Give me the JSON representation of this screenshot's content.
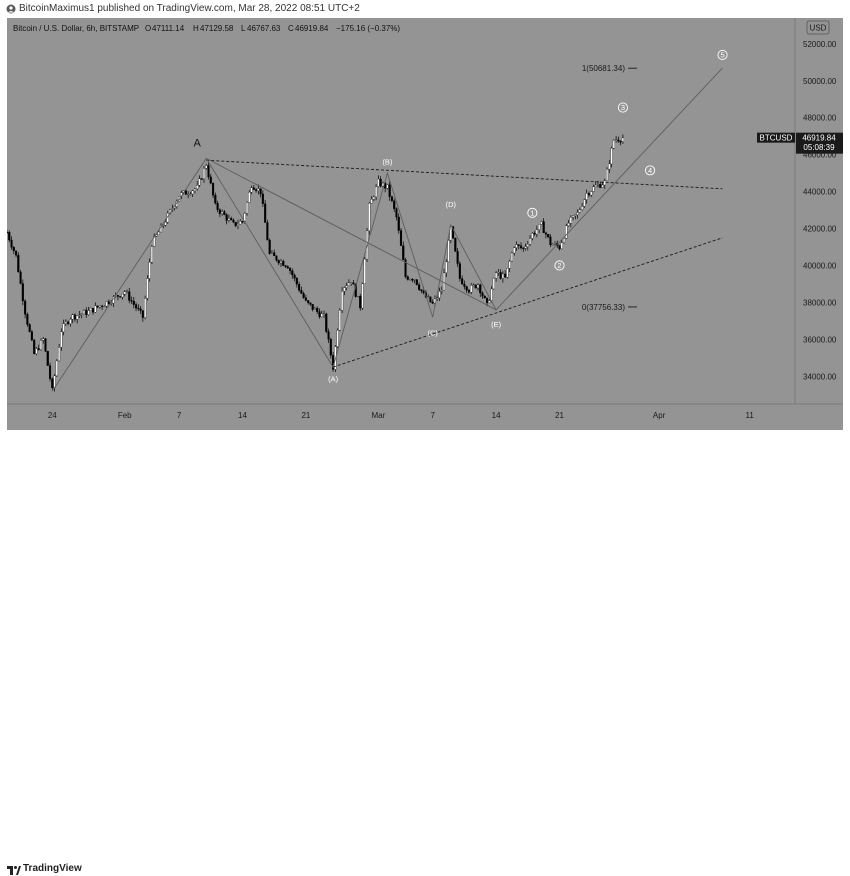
{
  "header": {
    "publisher": "BitcoinMaximus1 published on TradingView.com, Mar 28, 2022 08:51 UTC+2"
  },
  "footer": {
    "brand": "TradingView"
  },
  "chart_data": {
    "type": "candlestick",
    "legend": {
      "symbol": "Bitcoin / U.S. Dollar, 6h, BITSTAMP",
      "open_label": "O",
      "open": "47111.14",
      "high_label": "H",
      "high": "47129.58",
      "low_label": "L",
      "low": "46767.63",
      "close_label": "C",
      "close": "46919.84",
      "change": "−175.16 (−0.37%)"
    },
    "currency_label": "USD",
    "price_tag": {
      "symbol": "BTCUSD",
      "price": "46919.84",
      "price_value": 46919.84,
      "countdown": "05:08:39"
    },
    "y_axis": {
      "range": [
        32500,
        53400
      ],
      "ticks": [
        {
          "v": 52000,
          "label": "52000.00"
        },
        {
          "v": 50000,
          "label": "50000.00"
        },
        {
          "v": 48000,
          "label": "48000.00"
        },
        {
          "v": 46000,
          "label": "46000.00"
        },
        {
          "v": 44000,
          "label": "44000.00"
        },
        {
          "v": 42000,
          "label": "42000.00"
        },
        {
          "v": 40000,
          "label": "40000.00"
        },
        {
          "v": 38000,
          "label": "38000.00"
        },
        {
          "v": 36000,
          "label": "36000.00"
        },
        {
          "v": 34000,
          "label": "34000.00"
        }
      ]
    },
    "x_axis": {
      "range": [
        "2022-01-19",
        "2022-04-16"
      ],
      "ticks": [
        {
          "date": "2022-01-24",
          "label": "24"
        },
        {
          "date": "2022-02-01",
          "label": "Feb"
        },
        {
          "date": "2022-02-07",
          "label": "7"
        },
        {
          "date": "2022-02-14",
          "label": "14"
        },
        {
          "date": "2022-02-21",
          "label": "21"
        },
        {
          "date": "2022-03-01",
          "label": "Mar"
        },
        {
          "date": "2022-03-07",
          "label": "7"
        },
        {
          "date": "2022-03-14",
          "label": "14"
        },
        {
          "date": "2022-03-21",
          "label": "21"
        },
        {
          "date": "2022-04-01",
          "label": "Apr"
        },
        {
          "date": "2022-04-11",
          "label": "11"
        }
      ]
    },
    "price_path": [
      {
        "date": "2022-01-19",
        "price": 41800
      },
      {
        "date": "2022-01-20",
        "price": 40500
      },
      {
        "date": "2022-01-21",
        "price": 37500
      },
      {
        "date": "2022-01-22",
        "price": 35200
      },
      {
        "date": "2022-01-23",
        "price": 36000
      },
      {
        "date": "2022-01-24",
        "price": 33200
      },
      {
        "date": "2022-01-25",
        "price": 36500
      },
      {
        "date": "2022-01-26",
        "price": 37200
      },
      {
        "date": "2022-01-28",
        "price": 37500
      },
      {
        "date": "2022-01-30",
        "price": 38000
      },
      {
        "date": "2022-02-01",
        "price": 38600
      },
      {
        "date": "2022-02-03",
        "price": 37200
      },
      {
        "date": "2022-02-04",
        "price": 41200
      },
      {
        "date": "2022-02-05",
        "price": 42000
      },
      {
        "date": "2022-02-07",
        "price": 43800
      },
      {
        "date": "2022-02-09",
        "price": 44200
      },
      {
        "date": "2022-02-10",
        "price": 45500
      },
      {
        "date": "2022-02-11",
        "price": 43200
      },
      {
        "date": "2022-02-13",
        "price": 42200
      },
      {
        "date": "2022-02-14",
        "price": 42400
      },
      {
        "date": "2022-02-15",
        "price": 44400
      },
      {
        "date": "2022-02-16",
        "price": 44000
      },
      {
        "date": "2022-02-17",
        "price": 40600
      },
      {
        "date": "2022-02-19",
        "price": 40000
      },
      {
        "date": "2022-02-21",
        "price": 38000
      },
      {
        "date": "2022-02-22",
        "price": 37600
      },
      {
        "date": "2022-02-23",
        "price": 37200
      },
      {
        "date": "2022-02-24",
        "price": 34500
      },
      {
        "date": "2022-02-25",
        "price": 38800
      },
      {
        "date": "2022-02-26",
        "price": 39200
      },
      {
        "date": "2022-02-27",
        "price": 37800
      },
      {
        "date": "2022-02-28",
        "price": 43200
      },
      {
        "date": "2022-03-01",
        "price": 44500
      },
      {
        "date": "2022-03-02",
        "price": 44200
      },
      {
        "date": "2022-03-03",
        "price": 42600
      },
      {
        "date": "2022-03-04",
        "price": 39400
      },
      {
        "date": "2022-03-05",
        "price": 39300
      },
      {
        "date": "2022-03-06",
        "price": 38400
      },
      {
        "date": "2022-03-07",
        "price": 37900
      },
      {
        "date": "2022-03-08",
        "price": 38700
      },
      {
        "date": "2022-03-09",
        "price": 42000
      },
      {
        "date": "2022-03-10",
        "price": 39300
      },
      {
        "date": "2022-03-11",
        "price": 38700
      },
      {
        "date": "2022-03-12",
        "price": 39000
      },
      {
        "date": "2022-03-13",
        "price": 37800
      },
      {
        "date": "2022-03-14",
        "price": 39600
      },
      {
        "date": "2022-03-15",
        "price": 39300
      },
      {
        "date": "2022-03-16",
        "price": 41100
      },
      {
        "date": "2022-03-17",
        "price": 40900
      },
      {
        "date": "2022-03-18",
        "price": 41700
      },
      {
        "date": "2022-03-19",
        "price": 42200
      },
      {
        "date": "2022-03-20",
        "price": 41200
      },
      {
        "date": "2022-03-21",
        "price": 41000
      },
      {
        "date": "2022-03-22",
        "price": 42300
      },
      {
        "date": "2022-03-23",
        "price": 42800
      },
      {
        "date": "2022-03-24",
        "price": 43900
      },
      {
        "date": "2022-03-25",
        "price": 44300
      },
      {
        "date": "2022-03-26",
        "price": 44500
      },
      {
        "date": "2022-03-27",
        "price": 46800
      },
      {
        "date": "2022-03-28",
        "price": 46920
      }
    ],
    "fib_levels": [
      {
        "label": "1(50681.34)",
        "price": 50681.34
      },
      {
        "label": "0(37756.33)",
        "price": 37756.33
      }
    ],
    "trendlines": [
      {
        "style": "dashed",
        "from": {
          "date": "2022-02-10",
          "price": 45700
        },
        "to": {
          "date": "2022-04-08",
          "price": 44150
        }
      },
      {
        "style": "dashed",
        "from": {
          "date": "2022-02-24",
          "price": 34500
        },
        "to": {
          "date": "2022-04-08",
          "price": 41500
        }
      }
    ],
    "wave_lines": [
      {
        "points": [
          {
            "date": "2022-01-24",
            "price": 33200
          },
          {
            "date": "2022-02-10",
            "price": 45800
          },
          {
            "date": "2022-02-24",
            "price": 34500
          },
          {
            "date": "2022-03-02",
            "price": 45000
          },
          {
            "date": "2022-03-07",
            "price": 37200
          },
          {
            "date": "2022-03-09",
            "price": 42200
          },
          {
            "date": "2022-03-14",
            "price": 37600
          },
          {
            "date": "2022-04-08",
            "price": 50700
          }
        ]
      },
      {
        "points": [
          {
            "date": "2022-02-10",
            "price": 45800
          },
          {
            "date": "2022-03-14",
            "price": 37600
          }
        ]
      }
    ],
    "annotations": [
      {
        "label": "A",
        "date": "2022-02-09",
        "price": 46650,
        "style": "letter"
      },
      {
        "label": "(A)",
        "date": "2022-02-24",
        "price": 33850,
        "style": "paren"
      },
      {
        "label": "(B)",
        "date": "2022-03-02",
        "price": 45600,
        "style": "paren"
      },
      {
        "label": "(C)",
        "date": "2022-03-07",
        "price": 36350,
        "style": "paren"
      },
      {
        "label": "(D)",
        "date": "2022-03-09",
        "price": 43300,
        "style": "paren"
      },
      {
        "label": "(E)",
        "date": "2022-03-14",
        "price": 36800,
        "style": "paren"
      },
      {
        "label": "1",
        "date": "2022-03-18",
        "price": 42850,
        "style": "circle"
      },
      {
        "label": "2",
        "date": "2022-03-21",
        "price": 40000,
        "style": "circle"
      },
      {
        "label": "3",
        "date": "2022-03-28",
        "price": 48550,
        "style": "circle"
      },
      {
        "label": "4",
        "date": "2022-03-31",
        "price": 45150,
        "style": "circle"
      },
      {
        "label": "5",
        "date": "2022-04-08",
        "price": 51400,
        "style": "circle"
      }
    ]
  }
}
